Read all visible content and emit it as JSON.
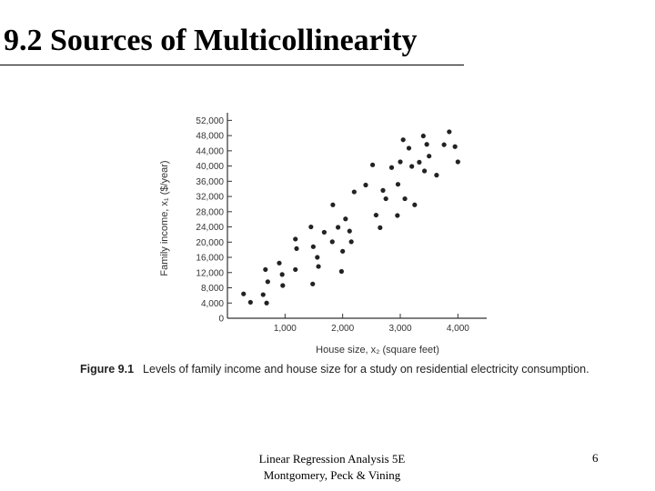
{
  "slide": {
    "title": "9.2 Sources of Multicollinearity",
    "footer_line1": "Linear Regression Analysis 5E",
    "footer_line2": "Montgomery, Peck & Vining",
    "page_number": "6"
  },
  "figure": {
    "label": "Figure 9.1",
    "caption": "Levels of family income and house size for a study on residential electricity consumption."
  },
  "chart_data": {
    "type": "scatter",
    "xlabel": "House size, x₂ (square feet)",
    "ylabel": "Family income, x₁ ($/year)",
    "xlim": [
      0,
      4500
    ],
    "ylim": [
      0,
      54000
    ],
    "xticks": [
      1000,
      2000,
      3000,
      4000
    ],
    "xtick_labels": [
      "1,000",
      "2,000",
      "3,000",
      "4,000"
    ],
    "yticks": [
      0,
      4000,
      8000,
      12000,
      16000,
      20000,
      24000,
      28000,
      32000,
      36000,
      40000,
      44000,
      48000,
      52000
    ],
    "ytick_labels": [
      "0",
      "4,000",
      "8,000",
      "12,000",
      "16,000",
      "20,000",
      "24,000",
      "28,000",
      "32,000",
      "36,000",
      "40,000",
      "44,000",
      "48,000",
      "52,000"
    ],
    "grid": false,
    "color": "#222222",
    "points": [
      {
        "x": 280,
        "y": 6400
      },
      {
        "x": 400,
        "y": 4200
      },
      {
        "x": 620,
        "y": 6200
      },
      {
        "x": 660,
        "y": 12800
      },
      {
        "x": 680,
        "y": 4000
      },
      {
        "x": 700,
        "y": 9600
      },
      {
        "x": 900,
        "y": 14500
      },
      {
        "x": 950,
        "y": 11500
      },
      {
        "x": 960,
        "y": 8600
      },
      {
        "x": 1180,
        "y": 12800
      },
      {
        "x": 1180,
        "y": 20800
      },
      {
        "x": 1200,
        "y": 18300
      },
      {
        "x": 1450,
        "y": 24000
      },
      {
        "x": 1480,
        "y": 9000
      },
      {
        "x": 1490,
        "y": 18800
      },
      {
        "x": 1560,
        "y": 16000
      },
      {
        "x": 1580,
        "y": 13600
      },
      {
        "x": 1680,
        "y": 22600
      },
      {
        "x": 1820,
        "y": 20100
      },
      {
        "x": 1830,
        "y": 29800
      },
      {
        "x": 1920,
        "y": 23900
      },
      {
        "x": 1980,
        "y": 12300
      },
      {
        "x": 2000,
        "y": 17600
      },
      {
        "x": 2050,
        "y": 26100
      },
      {
        "x": 2120,
        "y": 22900
      },
      {
        "x": 2150,
        "y": 20100
      },
      {
        "x": 2200,
        "y": 33200
      },
      {
        "x": 2400,
        "y": 35000
      },
      {
        "x": 2520,
        "y": 40300
      },
      {
        "x": 2580,
        "y": 27100
      },
      {
        "x": 2650,
        "y": 23800
      },
      {
        "x": 2700,
        "y": 33600
      },
      {
        "x": 2750,
        "y": 31400
      },
      {
        "x": 2850,
        "y": 39600
      },
      {
        "x": 2950,
        "y": 27000
      },
      {
        "x": 2960,
        "y": 35200
      },
      {
        "x": 3000,
        "y": 41100
      },
      {
        "x": 3050,
        "y": 46900
      },
      {
        "x": 3080,
        "y": 31400
      },
      {
        "x": 3150,
        "y": 44700
      },
      {
        "x": 3200,
        "y": 39900
      },
      {
        "x": 3250,
        "y": 29800
      },
      {
        "x": 3330,
        "y": 41000
      },
      {
        "x": 3400,
        "y": 47900
      },
      {
        "x": 3420,
        "y": 38700
      },
      {
        "x": 3460,
        "y": 45700
      },
      {
        "x": 3500,
        "y": 42600
      },
      {
        "x": 3630,
        "y": 37600
      },
      {
        "x": 3760,
        "y": 45600
      },
      {
        "x": 3850,
        "y": 49000
      },
      {
        "x": 3950,
        "y": 45100
      },
      {
        "x": 4000,
        "y": 41100
      }
    ]
  }
}
